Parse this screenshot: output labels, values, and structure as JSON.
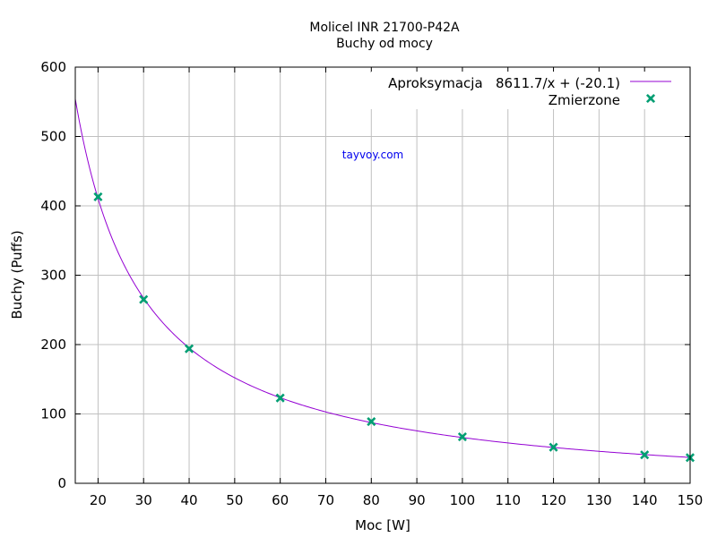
{
  "chart_data": {
    "type": "scatter",
    "title": "Molicel INR 21700-P42A",
    "subtitle": "Buchy od mocy",
    "xlabel": "Moc [W]",
    "ylabel": "Buchy (Puffs)",
    "xlim": [
      15,
      150
    ],
    "ylim": [
      0,
      600
    ],
    "x_ticks": [
      20,
      30,
      40,
      50,
      60,
      70,
      80,
      90,
      100,
      110,
      120,
      130,
      140,
      150
    ],
    "y_ticks": [
      0,
      100,
      200,
      300,
      400,
      500,
      600
    ],
    "grid": true,
    "legend_position": "top-right",
    "annotation": "tayvoy.com",
    "series": [
      {
        "name": "Aproksymacja   8611.7/x + (-20.1)",
        "kind": "line",
        "function": "8611.7/x + (-20.1)",
        "a": 8611.7,
        "b": -20.1,
        "color": "#9400d3"
      },
      {
        "name": "Zmierzone",
        "kind": "points",
        "color": "#009e73",
        "x": [
          20,
          30,
          40,
          60,
          80,
          100,
          120,
          140,
          150
        ],
        "y": [
          413,
          265,
          194,
          123,
          89,
          67,
          52,
          41,
          37
        ]
      }
    ]
  }
}
